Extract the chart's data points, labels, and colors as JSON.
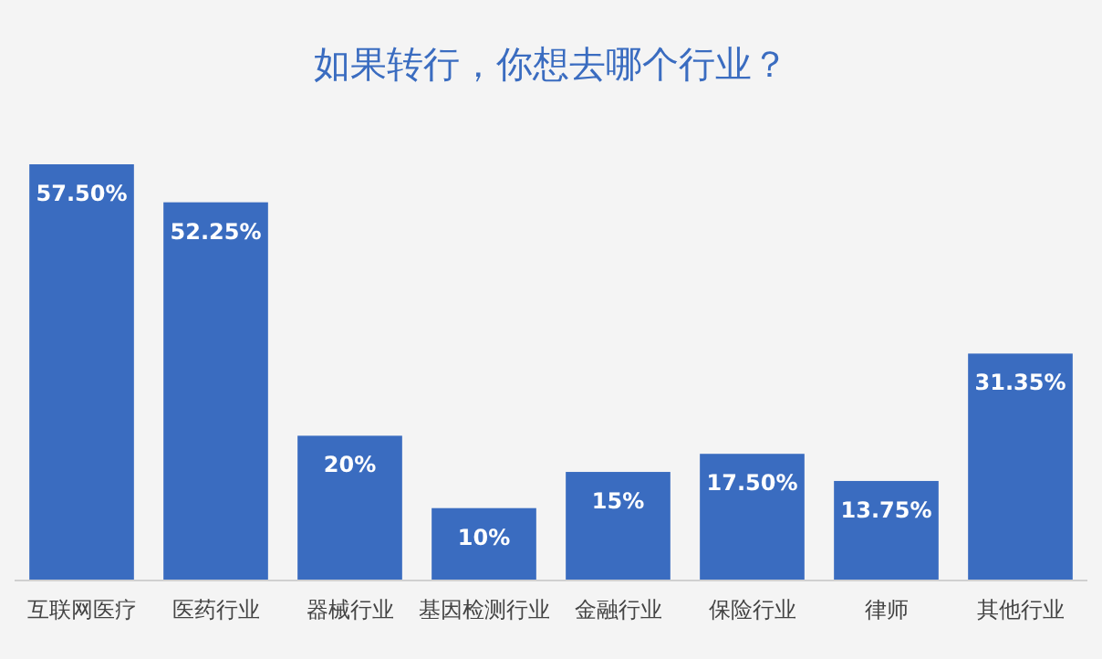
{
  "chart_data": {
    "type": "bar",
    "title": "如果转行，你想去哪个行业？",
    "categories": [
      "互联网医疗",
      "医药行业",
      "器械行业",
      "基因检测行业",
      "金融行业",
      "保险行业",
      "律师",
      "其他行业"
    ],
    "values": [
      57.5,
      52.25,
      20,
      10,
      15,
      17.5,
      13.75,
      31.35
    ],
    "value_labels": [
      "57.50%",
      "52.25%",
      "20%",
      "10%",
      "15%",
      "17.50%",
      "13.75%",
      "31.35%"
    ],
    "color": "#3a6cc0"
  }
}
